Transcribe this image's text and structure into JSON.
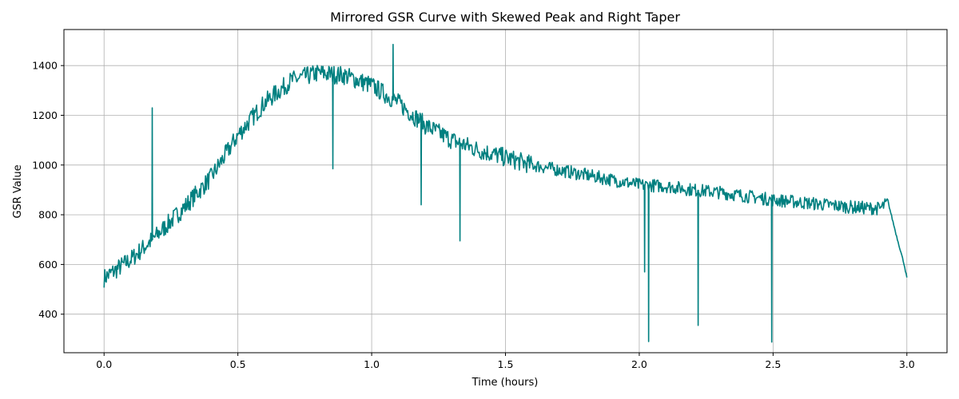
{
  "chart_data": {
    "type": "line",
    "title": "Mirrored GSR Curve with Skewed Peak and Right Taper",
    "xlabel": "Time (hours)",
    "ylabel": "GSR Value",
    "xlim": [
      -0.15,
      3.15
    ],
    "ylim": [
      245,
      1545
    ],
    "xticks": [
      0.0,
      0.5,
      1.0,
      1.5,
      2.0,
      2.5,
      3.0
    ],
    "xtick_labels": [
      "0.0",
      "0.5",
      "1.0",
      "1.5",
      "2.0",
      "2.5",
      "3.0"
    ],
    "yticks": [
      400,
      600,
      800,
      1000,
      1200,
      1400
    ],
    "ytick_labels": [
      "400",
      "600",
      "800",
      "1000",
      "1200",
      "1400"
    ],
    "grid": true,
    "legend": "none",
    "colors": {
      "line": "#008080",
      "grid": "#b0b0b0",
      "axis": "#000000"
    },
    "series": [
      {
        "color": "#008080",
        "x": [
          0.0,
          0.1,
          0.2,
          0.3,
          0.4,
          0.5,
          0.6,
          0.7,
          0.8,
          0.9,
          1.0,
          1.1,
          1.2,
          1.3,
          1.4,
          1.5,
          1.6,
          1.7,
          1.8,
          1.9,
          2.0,
          2.1,
          2.2,
          2.3,
          2.4,
          2.5,
          2.6,
          2.7,
          2.8,
          2.9,
          2.93,
          2.96,
          2.99,
          3.0
        ],
        "y": [
          545,
          620,
          720,
          830,
          950,
          1120,
          1250,
          1340,
          1370,
          1360,
          1320,
          1250,
          1160,
          1100,
          1060,
          1030,
          1000,
          980,
          960,
          940,
          920,
          915,
          900,
          890,
          875,
          860,
          850,
          840,
          830,
          825,
          850,
          720,
          600,
          545
        ],
        "noise": 38,
        "spikes": [
          {
            "x": 0.18,
            "y": 1230
          },
          {
            "x": 0.855,
            "y": 985
          },
          {
            "x": 1.08,
            "y": 1485
          },
          {
            "x": 1.185,
            "y": 840
          },
          {
            "x": 1.33,
            "y": 695
          },
          {
            "x": 2.02,
            "y": 570
          },
          {
            "x": 2.035,
            "y": 290
          },
          {
            "x": 2.22,
            "y": 355
          },
          {
            "x": 2.495,
            "y": 288
          }
        ]
      }
    ]
  }
}
